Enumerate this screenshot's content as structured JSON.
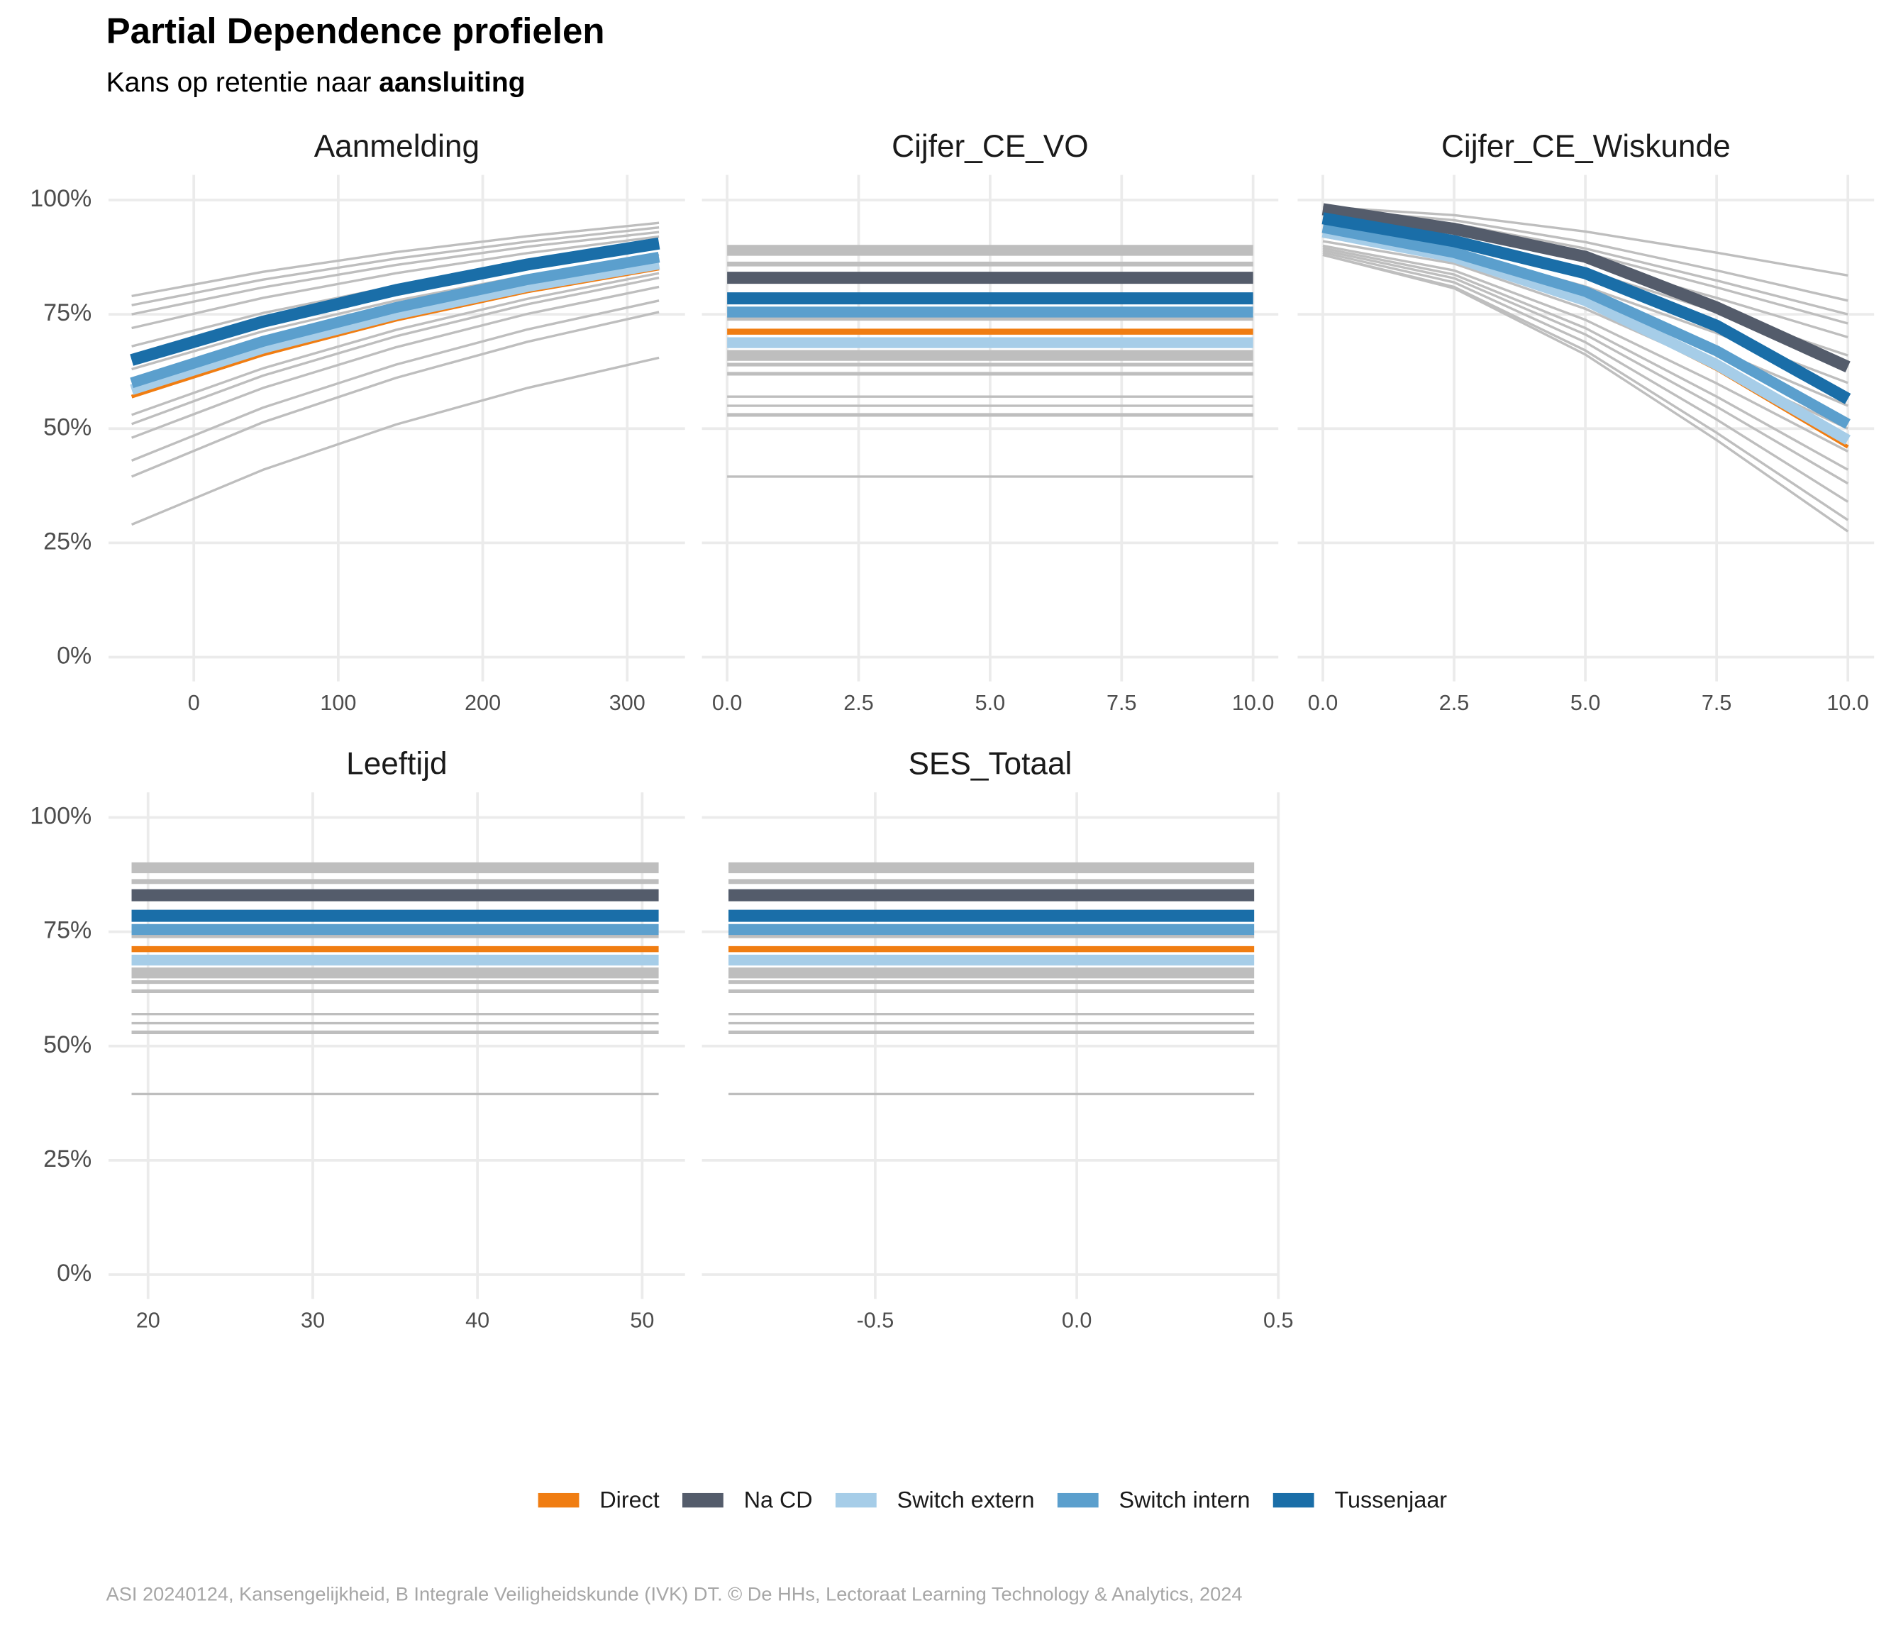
{
  "title": "Partial Dependence profielen",
  "subtitle": [
    "Kans op retentie naar ",
    "aansluiting"
  ],
  "caption": "ASI 20240124, Kansengelijkheid, B Integrale Veiligheidskunde (IVK) DT. © De HHs, Lectoraat Learning Technology & Analytics, 2024",
  "chart_data": [
    {
      "type": "line",
      "title": "Aanmelding",
      "grid": true,
      "x": [
        -43,
        48,
        140,
        231,
        322
      ],
      "xlim": [
        -59,
        340
      ],
      "xticks": [
        0,
        100,
        200,
        300
      ],
      "ylim": [
        -5.3,
        105.5
      ],
      "yticks": [
        {
          "value": 0,
          "label": "0%"
        },
        {
          "value": 25,
          "label": "25%"
        },
        {
          "value": 50,
          "label": "50%"
        },
        {
          "value": 75,
          "label": "75%"
        },
        {
          "value": 100,
          "label": "100%"
        }
      ],
      "series": [
        {
          "color": "#bebebe",
          "width": 2,
          "values": [
            79,
            84.3,
            88.6,
            92.1,
            95
          ]
        },
        {
          "color": "#bebebe",
          "width": 2,
          "values": [
            77,
            82.6,
            87.2,
            90.9,
            94
          ]
        },
        {
          "color": "#bebebe",
          "width": 2,
          "values": [
            75,
            80.9,
            85.8,
            89.8,
            93
          ]
        },
        {
          "color": "#bebebe",
          "width": 2,
          "values": [
            72,
            78.6,
            84,
            88.4,
            92
          ]
        },
        {
          "color": "#bebebe",
          "width": 2,
          "values": [
            68,
            75.3,
            81.2,
            86,
            90
          ]
        },
        {
          "color": "#bebebe",
          "width": 2,
          "values": [
            63,
            71.3,
            78,
            83.5,
            88
          ]
        },
        {
          "color": "#bebebe",
          "width": 2,
          "values": [
            53,
            63.2,
            71.6,
            78.4,
            84
          ]
        },
        {
          "color": "#bebebe",
          "width": 2,
          "values": [
            51,
            61.6,
            70.2,
            77.2,
            83
          ]
        },
        {
          "color": "#bebebe",
          "width": 2,
          "values": [
            48,
            58.9,
            67.8,
            75.1,
            81
          ]
        },
        {
          "color": "#bebebe",
          "width": 2,
          "values": [
            43,
            54.6,
            64,
            71.7,
            78
          ]
        },
        {
          "color": "#bebebe",
          "width": 2,
          "values": [
            39.5,
            51.4,
            61.1,
            69,
            75.5
          ]
        },
        {
          "color": "#bebebe",
          "width": 2,
          "values": [
            29,
            41,
            50.9,
            58.9,
            65.5
          ]
        },
        {
          "name": "Direct",
          "color": "#f07d12",
          "width": 3,
          "values": [
            57,
            66.2,
            73.8,
            80,
            85
          ]
        },
        {
          "name": "Switch extern",
          "color": "#a6cde8",
          "width": 9,
          "values": [
            58.5,
            67.6,
            75,
            81.1,
            86
          ]
        },
        {
          "name": "Switch intern",
          "color": "#5b9fcd",
          "width": 9,
          "values": [
            60,
            69.1,
            76.5,
            82.6,
            87.5
          ]
        },
        {
          "name": "Tussenjaar",
          "color": "#1a6ea8",
          "width": 10,
          "values": [
            65,
            73.4,
            80.3,
            85.9,
            90.5
          ]
        }
      ]
    },
    {
      "type": "line",
      "title": "Cijfer_CE_VO",
      "grid": true,
      "x": [
        0,
        10
      ],
      "xlim": [
        -0.48,
        10.48
      ],
      "xticks": [
        {
          "value": 0,
          "label": "0.0"
        },
        2.5,
        {
          "value": 5,
          "label": "5.0"
        },
        7.5,
        {
          "value": 10,
          "label": "10.0"
        }
      ],
      "ylim": [
        -5.3,
        105.5
      ],
      "yticks": [
        0,
        25,
        50,
        75,
        100
      ],
      "series": [
        {
          "color": "#bebebe",
          "width": 9,
          "values": [
            89,
            89
          ]
        },
        {
          "color": "#bebebe",
          "width": 4,
          "values": [
            86,
            86
          ]
        },
        {
          "color": "#bebebe",
          "width": 3,
          "values": [
            74,
            74
          ]
        },
        {
          "color": "#bebebe",
          "width": 9,
          "values": [
            66,
            66
          ]
        },
        {
          "color": "#bebebe",
          "width": 3,
          "values": [
            64,
            64
          ]
        },
        {
          "color": "#bebebe",
          "width": 3,
          "values": [
            62,
            62
          ]
        },
        {
          "color": "#bebebe",
          "width": 2,
          "values": [
            57,
            57
          ]
        },
        {
          "color": "#bebebe",
          "width": 2,
          "values": [
            55,
            55
          ]
        },
        {
          "color": "#bebebe",
          "width": 3,
          "values": [
            53,
            53
          ]
        },
        {
          "color": "#bebebe",
          "width": 2,
          "values": [
            39.5,
            39.5
          ]
        },
        {
          "name": "Direct",
          "color": "#f07d12",
          "width": 5,
          "values": [
            71.2,
            71.2
          ]
        },
        {
          "name": "Na CD",
          "color": "#545c6b",
          "width": 10,
          "values": [
            83,
            83
          ]
        },
        {
          "name": "Switch extern",
          "color": "#a6cde8",
          "width": 9,
          "values": [
            68.8,
            68.8
          ]
        },
        {
          "name": "Switch intern",
          "color": "#5b9fcd",
          "width": 9,
          "values": [
            75.5,
            75.5
          ]
        },
        {
          "name": "Tussenjaar",
          "color": "#1a6ea8",
          "width": 10,
          "values": [
            78.5,
            78.5
          ]
        }
      ]
    },
    {
      "type": "line",
      "title": "Cijfer_CE_Wiskunde",
      "grid": true,
      "x": [
        0,
        2.5,
        5,
        7.5,
        10
      ],
      "xlim": [
        -0.48,
        10.5
      ],
      "xticks": [
        {
          "value": 0,
          "label": "0.0"
        },
        2.5,
        {
          "value": 5,
          "label": "5.0"
        },
        7.5,
        {
          "value": 10,
          "label": "10.0"
        }
      ],
      "ylim": [
        -5.3,
        105.5
      ],
      "yticks": [
        0,
        25,
        50,
        75,
        100
      ],
      "series": [
        {
          "color": "#bebebe",
          "width": 2,
          "values": [
            98.5,
            96.7,
            93.1,
            88.5,
            83.5
          ]
        },
        {
          "color": "#bebebe",
          "width": 2,
          "values": [
            98,
            95.6,
            90.8,
            84.6,
            78
          ]
        },
        {
          "color": "#bebebe",
          "width": 2,
          "values": [
            97.5,
            94.8,
            89.4,
            82.4,
            75
          ]
        },
        {
          "color": "#bebebe",
          "width": 2,
          "values": [
            97,
            94.1,
            88.4,
            80.9,
            73
          ]
        },
        {
          "color": "#bebebe",
          "width": 2,
          "values": [
            96,
            92.9,
            86.6,
            78.6,
            70
          ]
        },
        {
          "color": "#bebebe",
          "width": 2,
          "values": [
            95,
            91.5,
            84.6,
            75.6,
            66
          ]
        },
        {
          "color": "#bebebe",
          "width": 2,
          "values": [
            93,
            89,
            81.1,
            70.9,
            60
          ]
        },
        {
          "color": "#bebebe",
          "width": 2,
          "values": [
            92,
            87.6,
            78.7,
            67.2,
            55
          ]
        },
        {
          "color": "#bebebe",
          "width": 2,
          "values": [
            91,
            86.1,
            76.2,
            63.5,
            50
          ]
        },
        {
          "color": "#bebebe",
          "width": 2,
          "values": [
            90,
            84.6,
            73.8,
            59.9,
            45
          ]
        },
        {
          "color": "#bebebe",
          "width": 2,
          "values": [
            89.5,
            83.7,
            72,
            57,
            41
          ]
        },
        {
          "color": "#bebebe",
          "width": 2,
          "values": [
            89,
            82.9,
            70.6,
            54.8,
            38
          ]
        },
        {
          "color": "#bebebe",
          "width": 2,
          "values": [
            88.5,
            82,
            68.9,
            52,
            34
          ]
        },
        {
          "color": "#bebebe",
          "width": 2,
          "values": [
            88,
            81,
            67.1,
            49.1,
            30
          ]
        },
        {
          "color": "#bebebe",
          "width": 2,
          "values": [
            88,
            80.7,
            66.2,
            47.5,
            27.5
          ]
        },
        {
          "name": "Direct",
          "color": "#f07d12",
          "width": 3,
          "values": [
            93,
            87,
            77.5,
            63,
            46
          ]
        },
        {
          "name": "Switch extern",
          "color": "#a6cde8",
          "width": 9,
          "values": [
            93,
            87.5,
            78,
            64,
            47.5
          ]
        },
        {
          "name": "Switch intern",
          "color": "#5b9fcd",
          "width": 9,
          "values": [
            94,
            88.5,
            80,
            67,
            51
          ]
        },
        {
          "name": "Na CD",
          "color": "#545c6b",
          "width": 10,
          "values": [
            98,
            93.7,
            87.6,
            76.5,
            63.5
          ]
        },
        {
          "name": "Tussenjaar",
          "color": "#1a6ea8",
          "width": 10,
          "values": [
            96,
            91,
            84,
            72.5,
            56.5
          ]
        }
      ]
    },
    {
      "type": "line",
      "title": "Leeftijd",
      "grid": true,
      "x": [
        19,
        51
      ],
      "xlim": [
        17.6,
        52.6
      ],
      "xticks": [
        20,
        30,
        40,
        50
      ],
      "ylim": [
        -5.3,
        105.5
      ],
      "yticks": [
        {
          "value": 0,
          "label": "0%"
        },
        {
          "value": 25,
          "label": "25%"
        },
        {
          "value": 50,
          "label": "50%"
        },
        {
          "value": 75,
          "label": "75%"
        },
        {
          "value": 100,
          "label": "100%"
        }
      ],
      "series": [
        {
          "color": "#bebebe",
          "width": 9,
          "values": [
            89,
            89
          ]
        },
        {
          "color": "#bebebe",
          "width": 4,
          "values": [
            86,
            86
          ]
        },
        {
          "color": "#bebebe",
          "width": 3,
          "values": [
            74,
            74
          ]
        },
        {
          "color": "#bebebe",
          "width": 9,
          "values": [
            66,
            66
          ]
        },
        {
          "color": "#bebebe",
          "width": 3,
          "values": [
            64,
            64
          ]
        },
        {
          "color": "#bebebe",
          "width": 3,
          "values": [
            62,
            62
          ]
        },
        {
          "color": "#bebebe",
          "width": 2,
          "values": [
            57,
            57
          ]
        },
        {
          "color": "#bebebe",
          "width": 2,
          "values": [
            55,
            55
          ]
        },
        {
          "color": "#bebebe",
          "width": 3,
          "values": [
            53,
            53
          ]
        },
        {
          "color": "#bebebe",
          "width": 2,
          "values": [
            39.5,
            39.5
          ]
        },
        {
          "name": "Direct",
          "color": "#f07d12",
          "width": 5,
          "values": [
            71.2,
            71.2
          ]
        },
        {
          "name": "Na CD",
          "color": "#545c6b",
          "width": 10,
          "values": [
            83,
            83
          ]
        },
        {
          "name": "Switch extern",
          "color": "#a6cde8",
          "width": 9,
          "values": [
            68.8,
            68.8
          ]
        },
        {
          "name": "Switch intern",
          "color": "#5b9fcd",
          "width": 9,
          "values": [
            75.5,
            75.5
          ]
        },
        {
          "name": "Tussenjaar",
          "color": "#1a6ea8",
          "width": 10,
          "values": [
            78.5,
            78.5
          ]
        }
      ]
    },
    {
      "type": "line",
      "title": "SES_Totaal",
      "grid": true,
      "x": [
        -0.864,
        0.44
      ],
      "xlim": [
        -0.93,
        0.5
      ],
      "xticks": [
        -0.5,
        {
          "value": 0,
          "label": "0.0"
        },
        0.5
      ],
      "ylim": [
        -5.3,
        105.5
      ],
      "yticks": [
        0,
        25,
        50,
        75,
        100
      ],
      "series": [
        {
          "color": "#bebebe",
          "width": 9,
          "values": [
            89,
            89
          ]
        },
        {
          "color": "#bebebe",
          "width": 4,
          "values": [
            86,
            86
          ]
        },
        {
          "color": "#bebebe",
          "width": 3,
          "values": [
            74,
            74
          ]
        },
        {
          "color": "#bebebe",
          "width": 9,
          "values": [
            66,
            66
          ]
        },
        {
          "color": "#bebebe",
          "width": 3,
          "values": [
            64,
            64
          ]
        },
        {
          "color": "#bebebe",
          "width": 3,
          "values": [
            62,
            62
          ]
        },
        {
          "color": "#bebebe",
          "width": 2,
          "values": [
            57,
            57
          ]
        },
        {
          "color": "#bebebe",
          "width": 2,
          "values": [
            55,
            55
          ]
        },
        {
          "color": "#bebebe",
          "width": 3,
          "values": [
            53,
            53
          ]
        },
        {
          "color": "#bebebe",
          "width": 2,
          "values": [
            39.5,
            39.5
          ]
        },
        {
          "name": "Direct",
          "color": "#f07d12",
          "width": 5,
          "values": [
            71.2,
            71.2
          ]
        },
        {
          "name": "Na CD",
          "color": "#545c6b",
          "width": 10,
          "values": [
            83,
            83
          ]
        },
        {
          "name": "Switch extern",
          "color": "#a6cde8",
          "width": 9,
          "values": [
            68.8,
            68.8
          ]
        },
        {
          "name": "Switch intern",
          "color": "#5b9fcd",
          "width": 9,
          "values": [
            75.5,
            75.5
          ]
        },
        {
          "name": "Tussenjaar",
          "color": "#1a6ea8",
          "width": 10,
          "values": [
            78.5,
            78.5
          ]
        }
      ]
    }
  ]
}
